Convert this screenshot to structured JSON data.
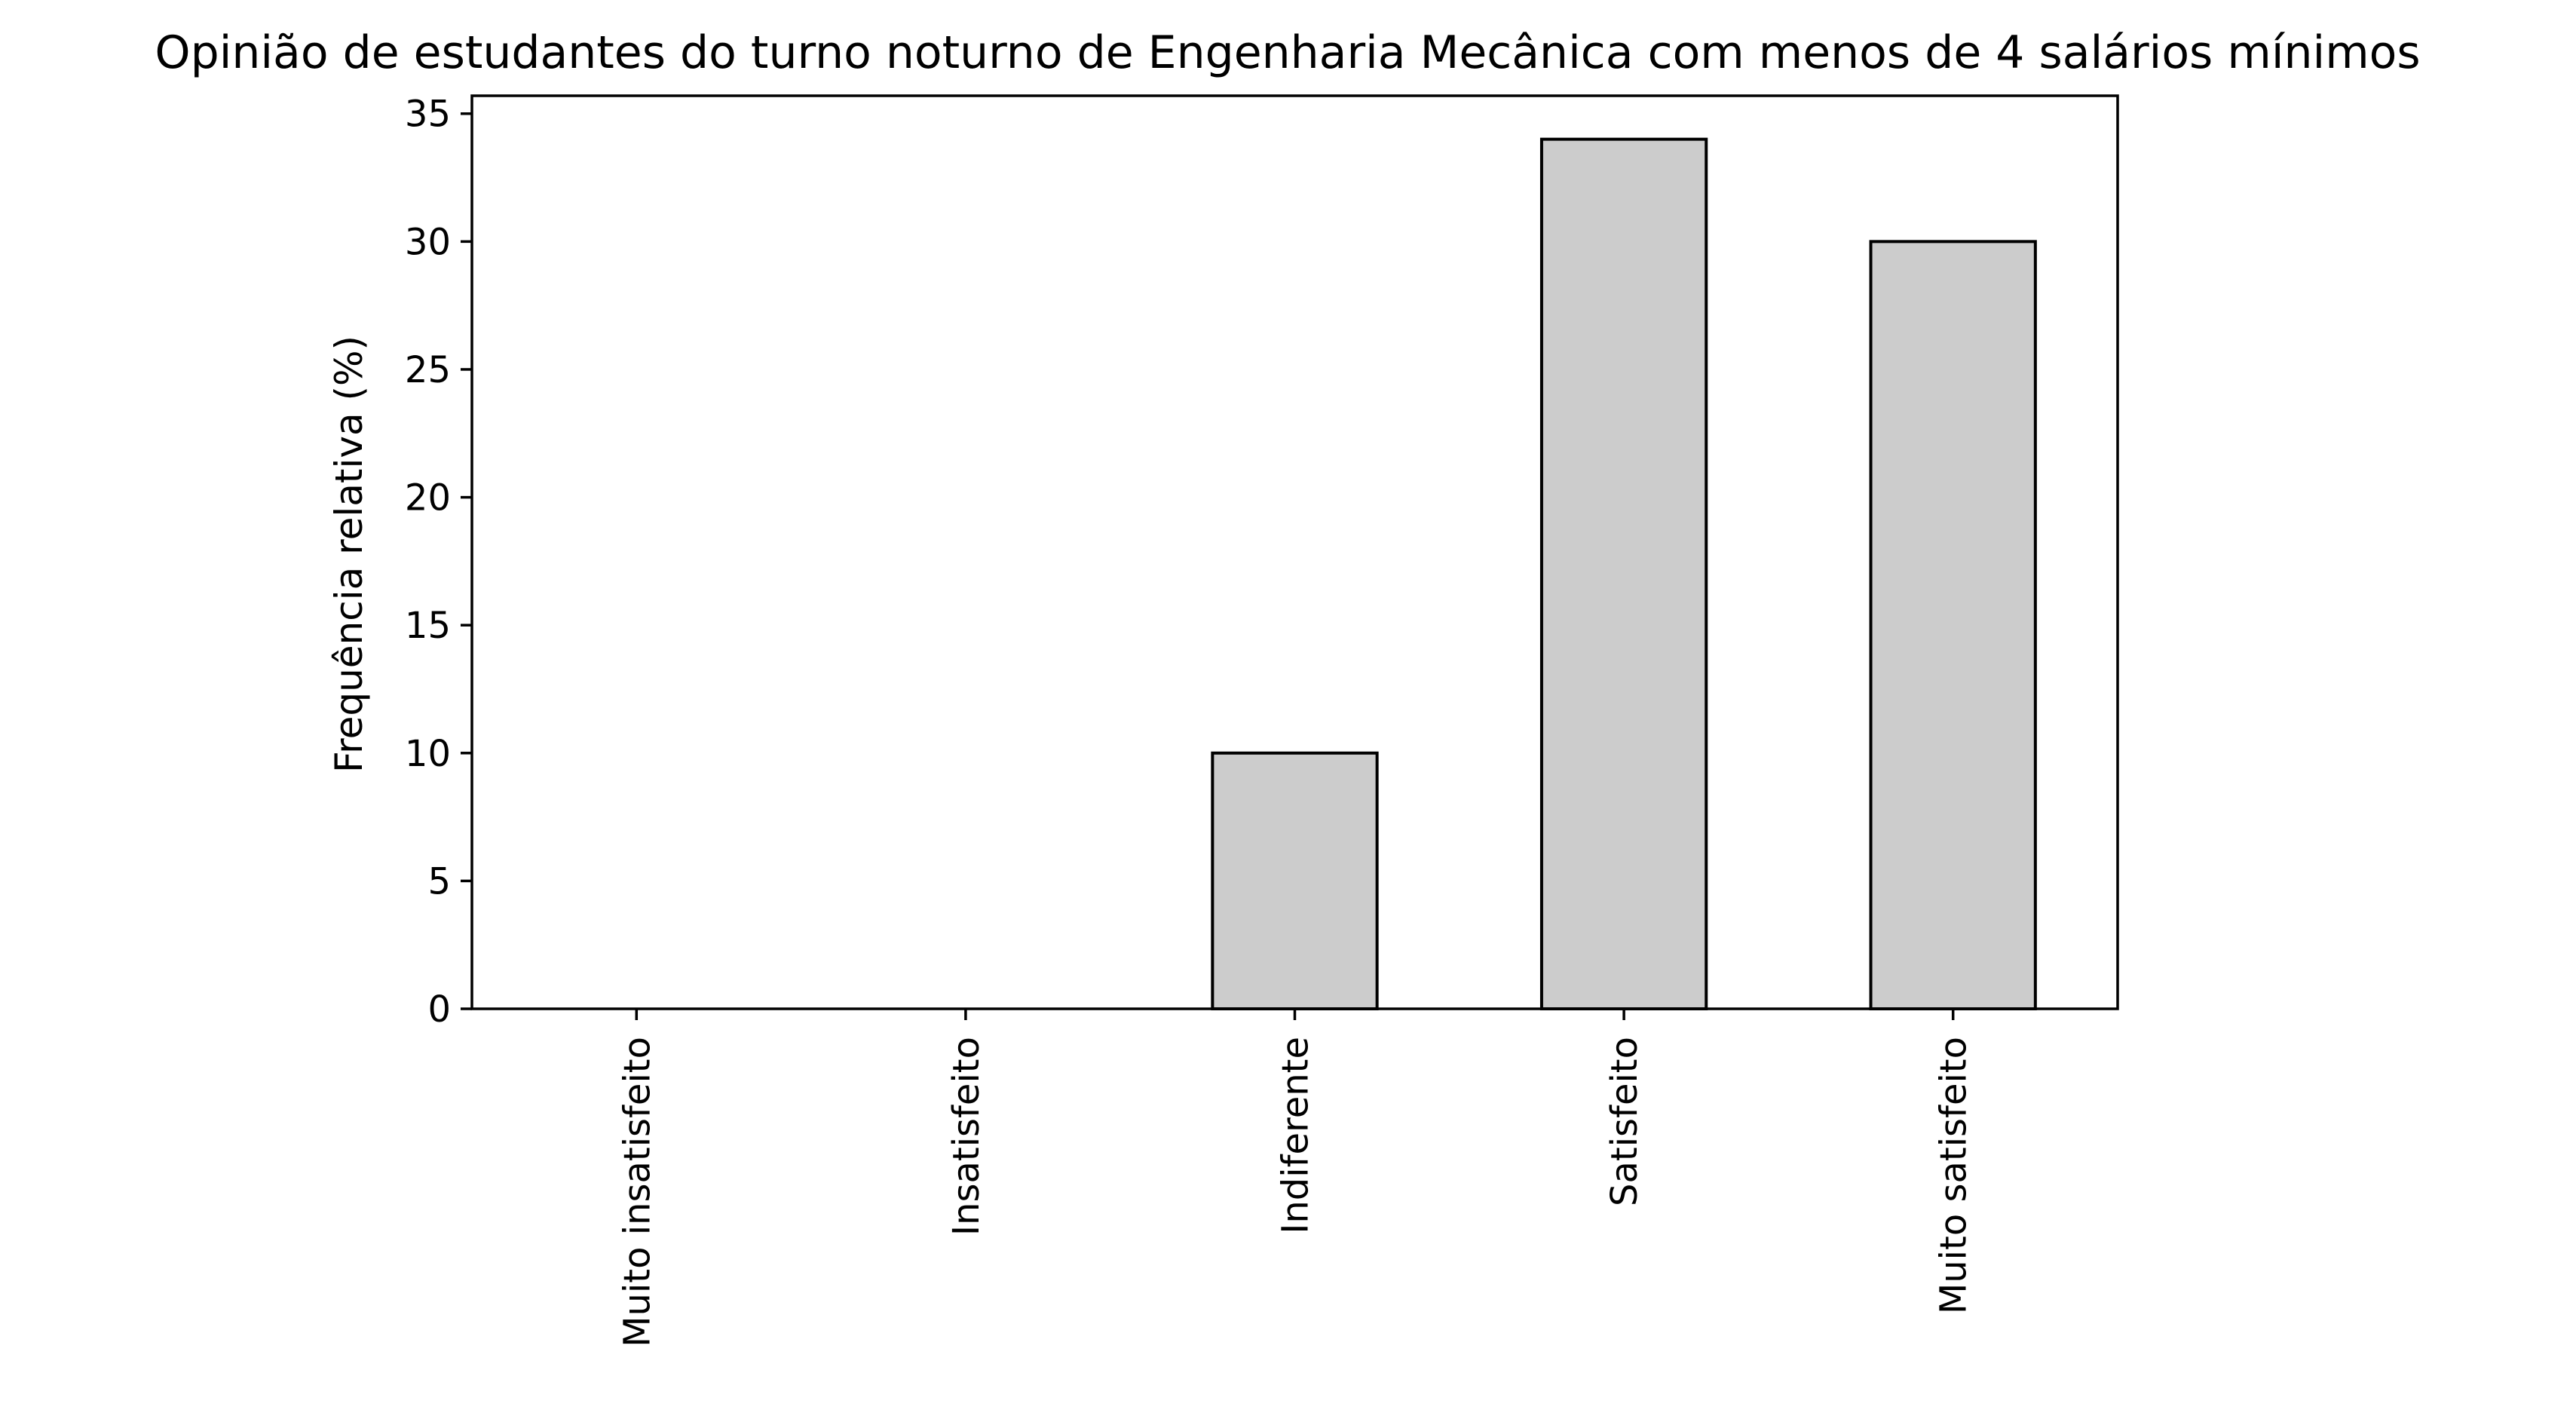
{
  "chart_data": {
    "type": "bar",
    "title": "Opinião de estudantes do turno noturno de Engenharia Mecânica com menos de 4 salários mínimos",
    "xlabel": "",
    "ylabel": "Frequência relativa (%)",
    "categories": [
      "Muito insatisfeito",
      "Insatisfeito",
      "Indiferente",
      "Satisfeito",
      "Muito satisfeito"
    ],
    "values": [
      0,
      0,
      10,
      34,
      30
    ],
    "ylim": [
      0,
      35.7
    ],
    "yticks": [
      "0",
      "5",
      "10",
      "15",
      "20",
      "25",
      "30",
      "35"
    ],
    "grid": false,
    "legend": "none",
    "colors": {
      "bar_fill": "#cccccc",
      "bar_edge": "#000000",
      "axes": "#000000",
      "background": "#ffffff"
    }
  }
}
